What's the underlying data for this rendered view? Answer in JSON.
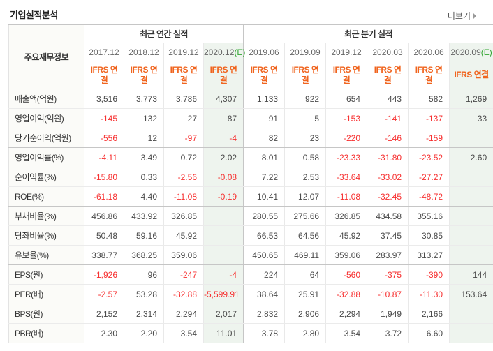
{
  "page": {
    "title": "기업실적분석",
    "more_label": "더보기"
  },
  "colors": {
    "accent_orange": "#f0641e",
    "negative_red": "#f72f2f",
    "estimate_green": "#32a532",
    "estimate_bg": "#eef4ee",
    "label_bg": "#fbfbf8"
  },
  "table": {
    "corner_header": "주요재무정보",
    "annual_group": {
      "label": "최근 연간 실적"
    },
    "quarterly_group": {
      "label": "최근 분기 실적"
    },
    "standard_label": "IFRS 연결",
    "columns": [
      {
        "period": "2017.12",
        "estimate_suffix": "",
        "estimated": false,
        "section": "annual"
      },
      {
        "period": "2018.12",
        "estimate_suffix": "",
        "estimated": false,
        "section": "annual"
      },
      {
        "period": "2019.12",
        "estimate_suffix": "",
        "estimated": false,
        "section": "annual"
      },
      {
        "period": "2020.12",
        "estimate_suffix": "(E)",
        "estimated": true,
        "section": "annual"
      },
      {
        "period": "2019.06",
        "estimate_suffix": "",
        "estimated": false,
        "section": "quarterly"
      },
      {
        "period": "2019.09",
        "estimate_suffix": "",
        "estimated": false,
        "section": "quarterly"
      },
      {
        "period": "2019.12",
        "estimate_suffix": "",
        "estimated": false,
        "section": "quarterly"
      },
      {
        "period": "2020.03",
        "estimate_suffix": "",
        "estimated": false,
        "section": "quarterly"
      },
      {
        "period": "2020.06",
        "estimate_suffix": "",
        "estimated": false,
        "section": "quarterly"
      },
      {
        "period": "2020.09",
        "estimate_suffix": "(E)",
        "estimated": true,
        "section": "quarterly"
      }
    ],
    "rows": [
      {
        "label": "매출액(억원)",
        "group_end": false,
        "values": [
          "3,516",
          "3,773",
          "3,786",
          "4,307",
          "1,133",
          "922",
          "654",
          "443",
          "582",
          "1,269"
        ]
      },
      {
        "label": "영업이익(억원)",
        "group_end": false,
        "values": [
          "-145",
          "132",
          "27",
          "87",
          "91",
          "5",
          "-153",
          "-141",
          "-137",
          "33"
        ]
      },
      {
        "label": "당기순이익(억원)",
        "group_end": true,
        "values": [
          "-556",
          "12",
          "-97",
          "-4",
          "82",
          "23",
          "-220",
          "-146",
          "-159",
          ""
        ]
      },
      {
        "label": "영업이익률(%)",
        "group_end": false,
        "values": [
          "-4.11",
          "3.49",
          "0.72",
          "2.02",
          "8.01",
          "0.58",
          "-23.33",
          "-31.80",
          "-23.52",
          "2.60"
        ]
      },
      {
        "label": "순이익률(%)",
        "group_end": false,
        "values": [
          "-15.80",
          "0.33",
          "-2.56",
          "-0.08",
          "7.22",
          "2.53",
          "-33.64",
          "-33.02",
          "-27.27",
          ""
        ]
      },
      {
        "label": "ROE(%)",
        "group_end": true,
        "values": [
          "-61.18",
          "4.40",
          "-11.08",
          "-0.19",
          "10.41",
          "12.07",
          "-11.08",
          "-32.45",
          "-48.72",
          ""
        ]
      },
      {
        "label": "부채비율(%)",
        "group_end": false,
        "values": [
          "456.86",
          "433.92",
          "326.85",
          "",
          "280.55",
          "275.66",
          "326.85",
          "434.58",
          "355.16",
          ""
        ]
      },
      {
        "label": "당좌비율(%)",
        "group_end": false,
        "values": [
          "50.48",
          "59.16",
          "45.92",
          "",
          "66.53",
          "64.56",
          "45.92",
          "37.45",
          "30.85",
          ""
        ]
      },
      {
        "label": "유보율(%)",
        "group_end": true,
        "values": [
          "338.77",
          "368.25",
          "359.06",
          "",
          "450.65",
          "469.11",
          "359.06",
          "283.97",
          "313.27",
          ""
        ]
      },
      {
        "label": "EPS(원)",
        "group_end": false,
        "values": [
          "-1,926",
          "96",
          "-247",
          "-4",
          "224",
          "64",
          "-560",
          "-375",
          "-390",
          "144"
        ]
      },
      {
        "label": "PER(배)",
        "group_end": false,
        "values": [
          "-2.57",
          "53.28",
          "-32.88",
          "-5,599.91",
          "38.64",
          "25.91",
          "-32.88",
          "-10.87",
          "-11.30",
          "153.64"
        ]
      },
      {
        "label": "BPS(원)",
        "group_end": false,
        "values": [
          "2,152",
          "2,314",
          "2,294",
          "2,017",
          "2,832",
          "2,906",
          "2,294",
          "1,949",
          "2,166",
          ""
        ]
      },
      {
        "label": "PBR(배)",
        "group_end": false,
        "values": [
          "2.30",
          "2.20",
          "3.54",
          "11.01",
          "3.78",
          "2.80",
          "3.54",
          "3.72",
          "6.60",
          ""
        ]
      }
    ]
  }
}
